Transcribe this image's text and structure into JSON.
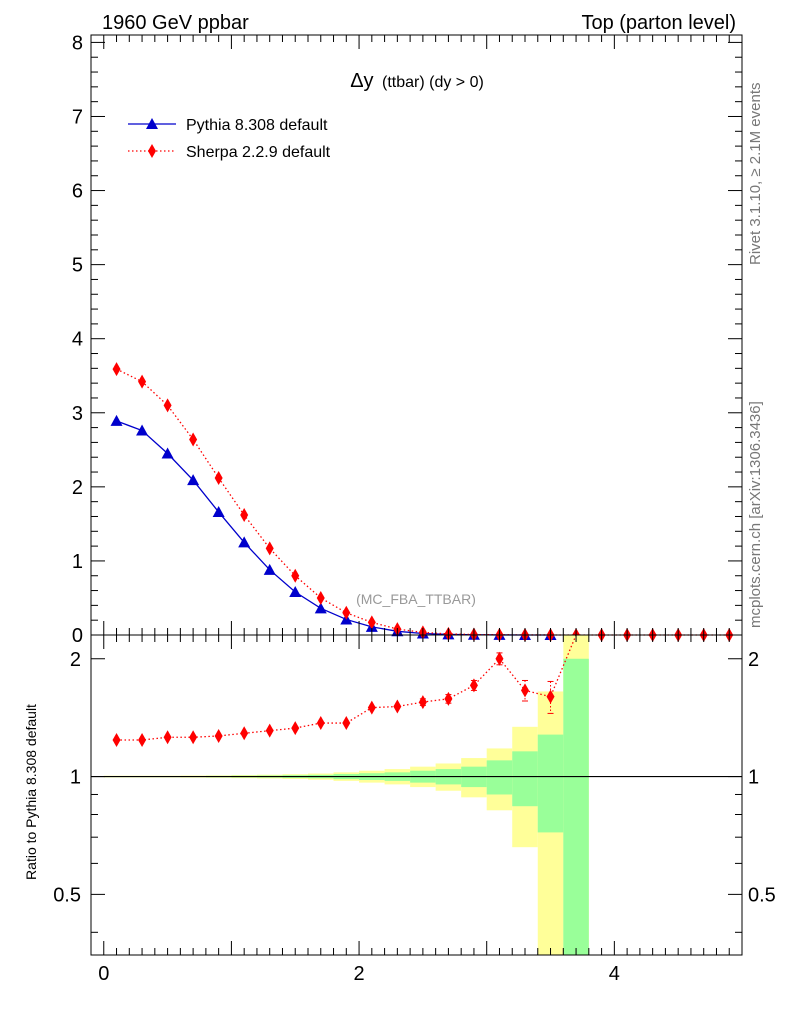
{
  "header": {
    "left": "1960 GeV ppbar",
    "right": "Top (parton level)"
  },
  "side": {
    "rivet": "Rivet 3.1.10, ≥ 2.1M events",
    "mcplots": "mcplots.cern.ch [arXiv:1306.3436]"
  },
  "chart_data": [
    {
      "type": "line",
      "title": "Δy (ttbar) (dy > 0)",
      "title_main": "Δy",
      "title_sub": "(ttbar) (dy > 0)",
      "annotation": "(MC_FBA_TTBAR)",
      "xlabel": "",
      "ylabel": "",
      "xlim": [
        -0.1,
        5.0
      ],
      "ylim": [
        0,
        8.1
      ],
      "yticks": [
        "0",
        "1",
        "2",
        "3",
        "4",
        "5",
        "6",
        "7",
        "8"
      ],
      "legend_placement": "top-left",
      "series": [
        {
          "name": "Pythia 8.308 default",
          "color": "#0000cc",
          "marker": "triangle",
          "line": "solid",
          "x": [
            0.1,
            0.3,
            0.5,
            0.7,
            0.9,
            1.1,
            1.3,
            1.5,
            1.7,
            1.9,
            2.1,
            2.3,
            2.5,
            2.7,
            2.9,
            3.1,
            3.3,
            3.5
          ],
          "y": [
            2.89,
            2.76,
            2.45,
            2.09,
            1.66,
            1.25,
            0.88,
            0.58,
            0.36,
            0.21,
            0.11,
            0.05,
            0.02,
            0.008,
            0.003,
            0.001,
            0.0004,
            0.0001
          ]
        },
        {
          "name": "Sherpa 2.2.9 default",
          "color": "#ff0000",
          "marker": "diamond",
          "line": "dotted",
          "x": [
            0.1,
            0.3,
            0.5,
            0.7,
            0.9,
            1.1,
            1.3,
            1.5,
            1.7,
            1.9,
            2.1,
            2.3,
            2.5,
            2.7,
            2.9,
            3.1,
            3.3,
            3.5,
            3.7,
            3.9,
            4.1,
            4.3,
            4.5,
            4.7,
            4.9
          ],
          "y": [
            3.59,
            3.42,
            3.1,
            2.64,
            2.12,
            1.62,
            1.17,
            0.8,
            0.5,
            0.3,
            0.17,
            0.08,
            0.035,
            0.015,
            0.006,
            0.003,
            0.001,
            0.0005,
            0.0002,
            0,
            0,
            0,
            0,
            0,
            0
          ]
        }
      ]
    },
    {
      "type": "line",
      "ylabel": "Ratio to Pythia 8.308 default",
      "xlim": [
        -0.1,
        5.0
      ],
      "ylim": [
        0.35,
        2.3
      ],
      "xticks": [
        "0",
        "2",
        "4"
      ],
      "yticks": [
        "0.5",
        "1",
        "2"
      ],
      "reference_line": 1,
      "uncertainty_bands": {
        "x_edges": [
          0.0,
          0.2,
          0.4,
          0.6,
          0.8,
          1.0,
          1.2,
          1.4,
          1.6,
          1.8,
          2.0,
          2.2,
          2.4,
          2.6,
          2.8,
          3.0,
          3.2,
          3.4,
          3.6,
          3.8
        ],
        "green_low": [
          0.997,
          0.997,
          0.997,
          0.997,
          0.996,
          0.995,
          0.994,
          0.992,
          0.99,
          0.985,
          0.98,
          0.975,
          0.965,
          0.955,
          0.94,
          0.9,
          0.84,
          0.72,
          0.35
        ],
        "green_high": [
          1.003,
          1.003,
          1.003,
          1.003,
          1.004,
          1.005,
          1.006,
          1.008,
          1.01,
          1.015,
          1.02,
          1.025,
          1.035,
          1.045,
          1.06,
          1.1,
          1.16,
          1.28,
          2.0
        ],
        "yellow_low": [
          0.995,
          0.995,
          0.995,
          0.994,
          0.993,
          0.991,
          0.989,
          0.986,
          0.982,
          0.975,
          0.965,
          0.955,
          0.94,
          0.92,
          0.885,
          0.82,
          0.66,
          0.35,
          0.35
        ],
        "yellow_high": [
          1.005,
          1.005,
          1.005,
          1.006,
          1.007,
          1.009,
          1.011,
          1.014,
          1.018,
          1.025,
          1.035,
          1.045,
          1.06,
          1.08,
          1.115,
          1.18,
          1.34,
          1.65,
          2.3
        ]
      },
      "series": [
        {
          "name": "Sherpa 2.2.9 default",
          "color": "#ff0000",
          "marker": "diamond",
          "line": "dotted",
          "x": [
            0.1,
            0.3,
            0.5,
            0.7,
            0.9,
            1.1,
            1.3,
            1.5,
            1.7,
            1.9,
            2.1,
            2.3,
            2.5,
            2.7,
            2.9,
            3.1,
            3.3,
            3.5
          ],
          "y": [
            1.24,
            1.24,
            1.26,
            1.26,
            1.27,
            1.29,
            1.31,
            1.33,
            1.37,
            1.37,
            1.5,
            1.51,
            1.55,
            1.58,
            1.71,
            2.0,
            1.66,
            1.6
          ],
          "err": [
            0.005,
            0.005,
            0.005,
            0.005,
            0.006,
            0.007,
            0.008,
            0.01,
            0.012,
            0.015,
            0.02,
            0.025,
            0.03,
            0.04,
            0.05,
            0.07,
            0.1,
            0.15
          ]
        }
      ]
    }
  ]
}
